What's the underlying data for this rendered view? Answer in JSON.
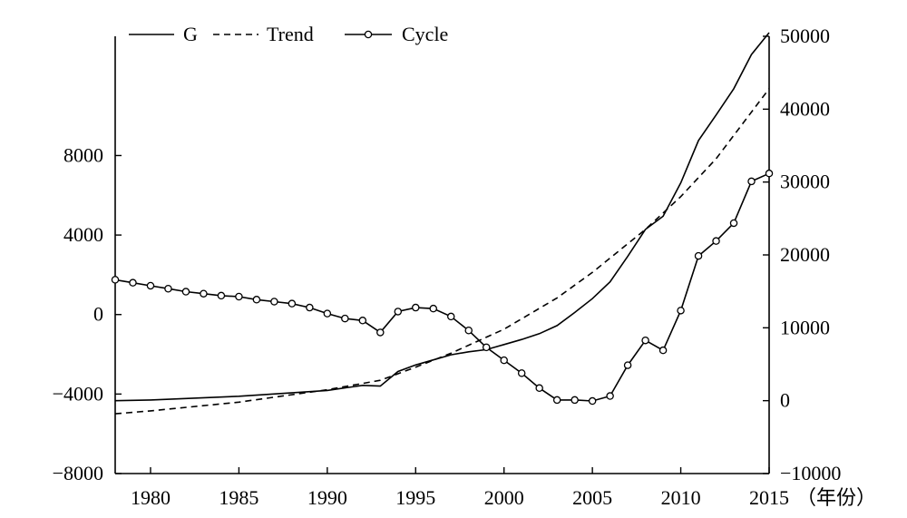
{
  "chart_data": {
    "type": "line",
    "title": "",
    "xlabel": "（年份）",
    "xlim": [
      1978,
      2015
    ],
    "x_ticks": [
      1980,
      1985,
      1990,
      1995,
      2000,
      2005,
      2010,
      2015
    ],
    "x_tick_labels": [
      "1980",
      "1985",
      "1990",
      "1995",
      "2000",
      "2005",
      "2010",
      "2015"
    ],
    "left_axis": {
      "ylim": [
        -8000,
        14000
      ],
      "ticks": [
        -8000,
        -4000,
        0,
        4000,
        8000
      ],
      "tick_labels": [
        "−8000",
        "−4000",
        "0",
        "4000",
        "8000"
      ]
    },
    "right_axis": {
      "ylim": [
        -10000,
        50000
      ],
      "ticks": [
        -10000,
        0,
        10000,
        20000,
        30000,
        40000,
        50000
      ],
      "tick_labels": [
        "−10000",
        "0",
        "10000",
        "20000",
        "30000",
        "40000",
        "50000"
      ]
    },
    "legend": {
      "position": "top-left",
      "entries": [
        {
          "name": "G",
          "style": "solid"
        },
        {
          "name": "Trend",
          "style": "dashed"
        },
        {
          "name": "Cycle",
          "style": "solid-circle"
        }
      ]
    },
    "series": [
      {
        "name": "G",
        "axis": "right",
        "style": "solid",
        "x": [
          1978,
          1980,
          1985,
          1990,
          1992,
          1993,
          1994,
          1995,
          1996,
          1997,
          1998,
          1999,
          2000,
          2001,
          2002,
          2003,
          2004,
          2005,
          2006,
          2007,
          2008,
          2009,
          2010,
          2011,
          2012,
          2013,
          2014,
          2015
        ],
        "y": [
          0,
          100,
          600,
          1400,
          2100,
          2000,
          4000,
          4900,
          5600,
          6300,
          6700,
          7000,
          7700,
          8400,
          9200,
          10300,
          12100,
          14000,
          16300,
          19800,
          23500,
          25300,
          29900,
          35700,
          39200,
          42800,
          47500,
          50500
        ]
      },
      {
        "name": "Trend",
        "axis": "right",
        "style": "dashed",
        "x": [
          1978,
          1980,
          1985,
          1990,
          1993,
          1995,
          1997,
          2000,
          2003,
          2005,
          2008,
          2010,
          2012,
          2015
        ],
        "y": [
          -1800,
          -1400,
          -200,
          1500,
          2800,
          4600,
          6500,
          9800,
          14100,
          17600,
          23500,
          28000,
          33200,
          42800
        ]
      },
      {
        "name": "Cycle",
        "axis": "left",
        "style": "solid-circle",
        "x": [
          1978,
          1979,
          1980,
          1981,
          1982,
          1983,
          1984,
          1985,
          1986,
          1987,
          1988,
          1989,
          1990,
          1991,
          1992,
          1993,
          1994,
          1995,
          1996,
          1997,
          1998,
          1999,
          2000,
          2001,
          2002,
          2003,
          2004,
          2005,
          2006,
          2007,
          2008,
          2009,
          2010,
          2011,
          2012,
          2013,
          2014,
          2015
        ],
        "y": [
          1750,
          1600,
          1450,
          1300,
          1150,
          1050,
          950,
          900,
          750,
          650,
          550,
          350,
          50,
          -200,
          -300,
          -900,
          150,
          350,
          300,
          -100,
          -800,
          -1650,
          -2300,
          -2950,
          -3700,
          -4300,
          -4300,
          -4350,
          -4100,
          -2550,
          -1300,
          -1800,
          200,
          2950,
          3700,
          4600,
          6700,
          7100
        ]
      }
    ]
  }
}
